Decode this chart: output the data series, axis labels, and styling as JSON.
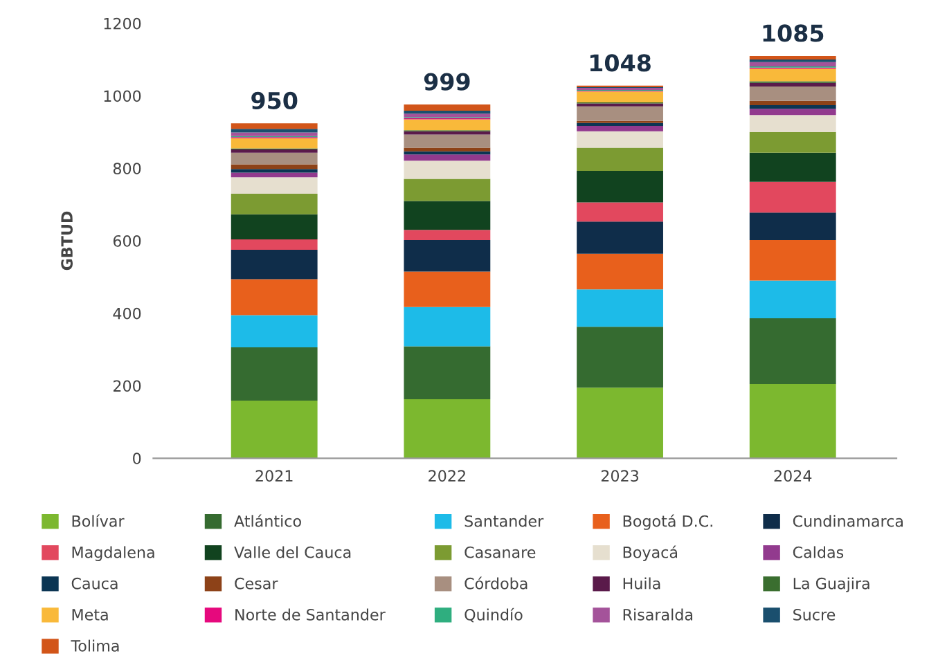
{
  "chart_data": {
    "type": "bar",
    "stacked": true,
    "ylabel": "GBTUD",
    "categories": [
      "2021",
      "2022",
      "2023",
      "2024"
    ],
    "ylim": [
      0,
      1200
    ],
    "yticks": [
      0,
      200,
      400,
      600,
      800,
      1000,
      1200
    ],
    "grid": false,
    "legend": "bottom",
    "annotations": [
      {
        "text": "950",
        "x": "2021",
        "y": 924
      },
      {
        "text": "999",
        "x": "2022",
        "y": 976
      },
      {
        "text": "1048",
        "x": "2023",
        "y": 1028
      },
      {
        "text": "1085",
        "x": "2024",
        "y": 1110
      }
    ],
    "series": [
      {
        "name": "Bolívar",
        "color": "#7cb82f",
        "values": [
          159,
          163,
          195,
          205
        ]
      },
      {
        "name": "Atlántico",
        "color": "#356b30",
        "values": [
          147,
          146,
          168,
          181
        ]
      },
      {
        "name": "Santander",
        "color": "#1dbbe8",
        "values": [
          89,
          108,
          103,
          104
        ]
      },
      {
        "name": "Bogotá D.C.",
        "color": "#e8601c",
        "values": [
          99,
          98,
          98,
          112
        ]
      },
      {
        "name": "Cundinamarca",
        "color": "#0f2d4a",
        "values": [
          81,
          87,
          89,
          76
        ]
      },
      {
        "name": "Magdalena",
        "color": "#e2485e",
        "values": [
          29,
          28,
          53,
          85
        ]
      },
      {
        "name": "Valle del Cauca",
        "color": "#11431f",
        "values": [
          69,
          80,
          87,
          80
        ]
      },
      {
        "name": "Casanare",
        "color": "#7c9b32",
        "values": [
          57,
          61,
          64,
          57
        ]
      },
      {
        "name": "Boyacá",
        "color": "#e6dfcf",
        "values": [
          45,
          50,
          45,
          47
        ]
      },
      {
        "name": "Caldas",
        "color": "#923a8e",
        "values": [
          13,
          17,
          15,
          17
        ]
      },
      {
        "name": "Cauca",
        "color": "#0b3553",
        "values": [
          10,
          9,
          8,
          10
        ]
      },
      {
        "name": "Cesar",
        "color": "#8d4218",
        "values": [
          13,
          10,
          6,
          12
        ]
      },
      {
        "name": "Córdoba",
        "color": "#a88f80",
        "values": [
          32,
          36,
          40,
          40
        ]
      },
      {
        "name": "Huila",
        "color": "#5a1a4a",
        "values": [
          9,
          9,
          8,
          10
        ]
      },
      {
        "name": "La Guajira",
        "color": "#3a6e2f",
        "values": [
          3,
          3,
          3,
          4
        ]
      },
      {
        "name": "Meta",
        "color": "#f9b93a",
        "values": [
          28,
          30,
          30,
          35
        ]
      },
      {
        "name": "Norte de Santander",
        "color": "#e6097d",
        "values": [
          3,
          3,
          2,
          3
        ]
      },
      {
        "name": "Quindío",
        "color": "#2fae7f",
        "values": [
          3,
          3,
          2,
          3
        ]
      },
      {
        "name": "Risaralda",
        "color": "#a4539a",
        "values": [
          10,
          10,
          6,
          12
        ]
      },
      {
        "name": "Sucre",
        "color": "#1a4f6e",
        "values": [
          10,
          8,
          2,
          7
        ]
      },
      {
        "name": "Tolima",
        "color": "#d25519",
        "values": [
          15,
          17,
          4,
          10
        ]
      }
    ]
  }
}
